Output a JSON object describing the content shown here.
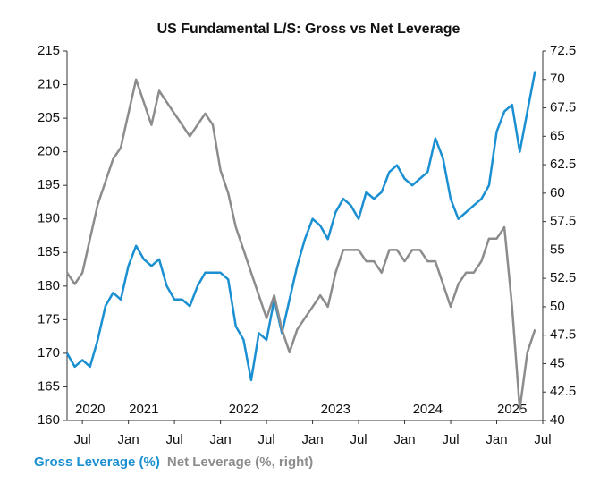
{
  "chart_data": {
    "type": "line",
    "title": "US Fundamental L/S: Gross vs Net Leverage",
    "x": [
      "2020-05",
      "2020-06",
      "2020-07",
      "2020-08",
      "2020-09",
      "2020-10",
      "2020-11",
      "2020-12",
      "2021-01",
      "2021-02",
      "2021-03",
      "2021-04",
      "2021-05",
      "2021-06",
      "2021-07",
      "2021-08",
      "2021-09",
      "2021-10",
      "2021-11",
      "2021-12",
      "2022-01",
      "2022-02",
      "2022-03",
      "2022-04",
      "2022-05",
      "2022-06",
      "2022-07",
      "2022-08",
      "2022-09",
      "2022-10",
      "2022-11",
      "2022-12",
      "2023-01",
      "2023-02",
      "2023-03",
      "2023-04",
      "2023-05",
      "2023-06",
      "2023-07",
      "2023-08",
      "2023-09",
      "2023-10",
      "2023-11",
      "2023-12",
      "2024-01",
      "2024-02",
      "2024-03",
      "2024-04",
      "2024-05",
      "2024-06",
      "2024-07",
      "2024-08",
      "2024-09",
      "2024-10",
      "2024-11",
      "2024-12",
      "2025-01",
      "2025-02",
      "2025-03",
      "2025-04",
      "2025-05",
      "2025-06"
    ],
    "series": [
      {
        "name": "Gross Leverage (%)",
        "color": "#1a8fd1",
        "axis": "y",
        "values": [
          170,
          168,
          169,
          168,
          172,
          177,
          179,
          178,
          183,
          186,
          184,
          183,
          184,
          180,
          178,
          178,
          177,
          180,
          182,
          182,
          182,
          181,
          174,
          172,
          166,
          173,
          172,
          178,
          173,
          178,
          183,
          187,
          190,
          189,
          187,
          191,
          193,
          192,
          190,
          194,
          193,
          194,
          197,
          198,
          196,
          195,
          196,
          197,
          202,
          199,
          193,
          190,
          191,
          192,
          193,
          195,
          203,
          206,
          207,
          200,
          206,
          212
        ]
      },
      {
        "name": "Net Leverage (%, right)",
        "color": "#8c8c8c",
        "axis": "y2",
        "values": [
          53,
          52,
          53,
          56,
          59,
          61,
          63,
          64,
          67,
          70,
          68,
          66,
          69,
          68,
          67,
          66,
          65,
          66,
          67,
          66,
          62,
          60,
          57,
          55,
          53,
          51,
          49,
          51,
          48,
          46,
          48,
          49,
          50,
          51,
          50,
          53,
          55,
          55,
          55,
          54,
          54,
          53,
          55,
          55,
          54,
          55,
          55,
          54,
          54,
          52,
          50,
          52,
          53,
          53,
          54,
          56,
          56,
          57,
          50,
          41,
          46,
          48
        ]
      }
    ],
    "xlim": [
      "2020-05",
      "2025-07"
    ],
    "xticks": [
      {
        "value": "2020-07",
        "label": "Jul"
      },
      {
        "value": "2021-01",
        "label": "Jan"
      },
      {
        "value": "2021-07",
        "label": "Jul"
      },
      {
        "value": "2022-01",
        "label": "Jan"
      },
      {
        "value": "2022-07",
        "label": "Jul"
      },
      {
        "value": "2023-01",
        "label": "Jan"
      },
      {
        "value": "2023-07",
        "label": "Jul"
      },
      {
        "value": "2024-01",
        "label": "Jan"
      },
      {
        "value": "2024-07",
        "label": "Jul"
      },
      {
        "value": "2025-01",
        "label": "Jan"
      },
      {
        "value": "2025-07",
        "label": "Jul"
      }
    ],
    "year_labels": [
      {
        "value": "2020-08",
        "label": "2020"
      },
      {
        "value": "2021-03",
        "label": "2021"
      },
      {
        "value": "2022-04",
        "label": "2022"
      },
      {
        "value": "2023-04",
        "label": "2023"
      },
      {
        "value": "2024-04",
        "label": "2024"
      },
      {
        "value": "2025-03",
        "label": "2025"
      }
    ],
    "ylim": [
      160,
      215
    ],
    "yticks": [
      160,
      165,
      170,
      175,
      180,
      185,
      190,
      195,
      200,
      205,
      210,
      215
    ],
    "y2lim": [
      40,
      72.5
    ],
    "y2ticks": [
      40,
      42.5,
      45,
      47.5,
      50,
      52.5,
      55,
      57.5,
      60,
      62.5,
      65,
      67.5,
      70,
      72.5
    ],
    "grid": false
  }
}
